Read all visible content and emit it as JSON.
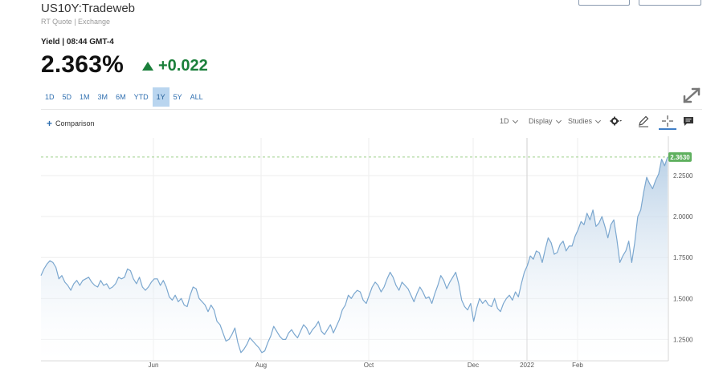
{
  "header": {
    "symbol": "US10Y:Tradeweb",
    "subtitle": "RT Quote | Exchange"
  },
  "quote": {
    "label": "Yield | 08:44 GMT-4",
    "value": "2.363%",
    "change": "+0.022"
  },
  "ranges": [
    "1D",
    "5D",
    "1M",
    "3M",
    "6M",
    "YTD",
    "1Y",
    "5Y",
    "ALL"
  ],
  "active_range": "1Y",
  "toolbar": {
    "comparison": "Comparison",
    "interval": "1D",
    "display": "Display",
    "studies": "Studies"
  },
  "colors": {
    "line": "#7ba7cf",
    "fill_top": "#b7cfe6",
    "up": "#1a7f3a",
    "accent": "#2f6fb0",
    "last_price_badge": "#5fb05f"
  },
  "chart_data": {
    "type": "area",
    "title": "",
    "xlabel": "",
    "ylabel": "",
    "x_ticks": [
      "Jun",
      "Aug",
      "Oct",
      "Dec",
      "2022",
      "Feb"
    ],
    "y_ticks": [
      "2.2500",
      "2.0000",
      "1.7500",
      "1.5000",
      "1.2500"
    ],
    "ylim": [
      1.12,
      2.48
    ],
    "grid": true,
    "last_value": "2.3630",
    "series": [
      {
        "values": [
          1.64,
          1.68,
          1.71,
          1.73,
          1.72,
          1.69,
          1.62,
          1.64,
          1.6,
          1.58,
          1.55,
          1.59,
          1.61,
          1.58,
          1.61,
          1.62,
          1.63,
          1.6,
          1.58,
          1.57,
          1.61,
          1.58,
          1.59,
          1.56,
          1.57,
          1.59,
          1.63,
          1.62,
          1.63,
          1.68,
          1.67,
          1.62,
          1.59,
          1.63,
          1.57,
          1.55,
          1.57,
          1.6,
          1.62,
          1.62,
          1.58,
          1.61,
          1.57,
          1.51,
          1.49,
          1.52,
          1.48,
          1.5,
          1.46,
          1.45,
          1.52,
          1.57,
          1.56,
          1.5,
          1.48,
          1.46,
          1.42,
          1.46,
          1.43,
          1.36,
          1.34,
          1.29,
          1.24,
          1.25,
          1.28,
          1.32,
          1.23,
          1.17,
          1.19,
          1.22,
          1.26,
          1.24,
          1.22,
          1.2,
          1.17,
          1.18,
          1.23,
          1.27,
          1.33,
          1.3,
          1.27,
          1.25,
          1.25,
          1.29,
          1.31,
          1.28,
          1.26,
          1.3,
          1.34,
          1.32,
          1.28,
          1.31,
          1.33,
          1.36,
          1.3,
          1.28,
          1.31,
          1.34,
          1.29,
          1.33,
          1.37,
          1.43,
          1.46,
          1.52,
          1.5,
          1.53,
          1.55,
          1.54,
          1.49,
          1.47,
          1.52,
          1.57,
          1.6,
          1.58,
          1.54,
          1.57,
          1.62,
          1.66,
          1.63,
          1.58,
          1.55,
          1.6,
          1.58,
          1.56,
          1.52,
          1.48,
          1.53,
          1.57,
          1.54,
          1.5,
          1.51,
          1.47,
          1.53,
          1.58,
          1.64,
          1.61,
          1.56,
          1.6,
          1.63,
          1.66,
          1.59,
          1.49,
          1.45,
          1.43,
          1.47,
          1.36,
          1.44,
          1.5,
          1.47,
          1.49,
          1.46,
          1.45,
          1.5,
          1.44,
          1.42,
          1.47,
          1.5,
          1.52,
          1.49,
          1.54,
          1.51,
          1.59,
          1.66,
          1.7,
          1.76,
          1.74,
          1.79,
          1.78,
          1.72,
          1.8,
          1.87,
          1.84,
          1.77,
          1.78,
          1.83,
          1.85,
          1.79,
          1.82,
          1.82,
          1.88,
          1.92,
          1.97,
          1.95,
          2.02,
          1.98,
          2.04,
          1.94,
          1.96,
          2.0,
          1.94,
          1.87,
          1.95,
          1.98,
          1.86,
          1.72,
          1.76,
          1.79,
          1.85,
          1.72,
          1.84,
          2.0,
          2.04,
          2.15,
          2.24,
          2.2,
          2.17,
          2.22,
          2.26,
          2.35,
          2.31,
          2.363
        ]
      }
    ]
  }
}
